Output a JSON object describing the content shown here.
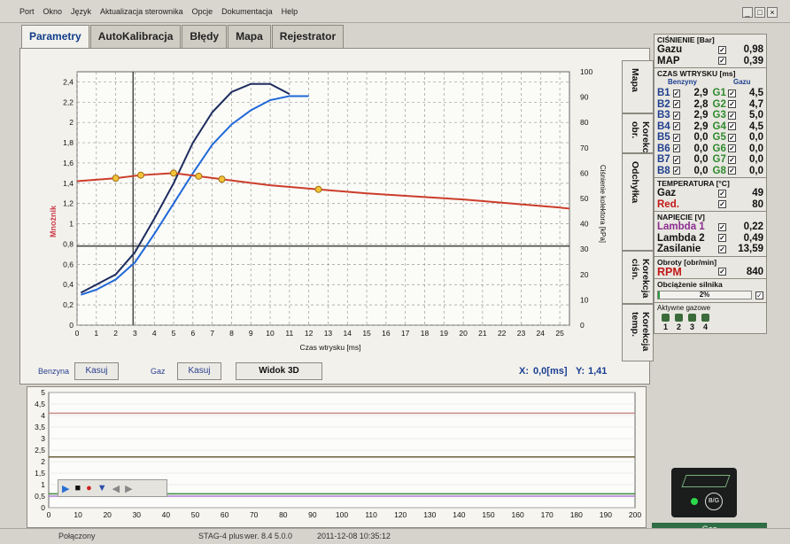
{
  "menu": [
    "Port",
    "Okno",
    "Język",
    "Aktualizacja sterownika",
    "Opcje",
    "Dokumentacja",
    "Help"
  ],
  "tabs": [
    "Parametry",
    "AutoKalibracja",
    "Błędy",
    "Mapa",
    "Rejestrator"
  ],
  "active_tab": "Parametry",
  "side_tabs": [
    "Mapa",
    "Korekcja obr.",
    "Odchyłka",
    "Korekcja ciśn.",
    "Korekcja temp."
  ],
  "map_chart": {
    "ylabel_left": "Mnożnik",
    "ylabel_right": "Ciśnienie kolektora [kPa]",
    "xlabel": "Czas wtrysku [ms]",
    "x_ticks": [
      "0",
      "1",
      "2",
      "3",
      "4",
      "5",
      "6",
      "7",
      "8",
      "9",
      "10",
      "11",
      "12",
      "13",
      "14",
      "15",
      "16",
      "17",
      "18",
      "19",
      "20",
      "21",
      "22",
      "23",
      "24",
      "25"
    ],
    "y_left_ticks": [
      "0",
      "0,2",
      "0,4",
      "0,6",
      "0,8",
      "1",
      "1,2",
      "1,4",
      "1,6",
      "1,8",
      "2",
      "2,2",
      "2,4"
    ],
    "y_right_ticks": [
      "0",
      "10",
      "20",
      "30",
      "40",
      "50",
      "60",
      "70",
      "80",
      "90",
      "100"
    ]
  },
  "chart_data": [
    {
      "type": "scatter",
      "title": "",
      "xlabel": "Czas wtrysku [ms]",
      "ylabel": "Mnożnik",
      "ylabel_right": "Ciśnienie kolektora [kPa]",
      "xlim": [
        0,
        25.5
      ],
      "ylim": [
        0,
        2.5
      ],
      "ylim_right": [
        0,
        100
      ],
      "grid": true,
      "series": [
        {
          "name": "Benzyna",
          "color": "#1d2c5e",
          "curve": [
            [
              0.2,
              0.32
            ],
            [
              1,
              0.4
            ],
            [
              2,
              0.5
            ],
            [
              3,
              0.72
            ],
            [
              4,
              1.05
            ],
            [
              5,
              1.4
            ],
            [
              6,
              1.8
            ],
            [
              7,
              2.1
            ],
            [
              8,
              2.3
            ],
            [
              9,
              2.38
            ],
            [
              10,
              2.38
            ],
            [
              11,
              2.28
            ]
          ]
        },
        {
          "name": "Gaz",
          "color": "#1f68d8",
          "curve": [
            [
              0.2,
              0.3
            ],
            [
              1,
              0.35
            ],
            [
              2,
              0.45
            ],
            [
              3,
              0.62
            ],
            [
              4,
              0.9
            ],
            [
              5,
              1.2
            ],
            [
              6,
              1.5
            ],
            [
              7,
              1.78
            ],
            [
              8,
              1.98
            ],
            [
              9,
              2.12
            ],
            [
              10,
              2.22
            ],
            [
              11,
              2.26
            ],
            [
              12,
              2.26
            ]
          ]
        },
        {
          "name": "",
          "color": "#cc3d2a",
          "curve": [
            [
              0,
              1.42
            ],
            [
              2,
              1.45
            ],
            [
              3.3,
              1.48
            ],
            [
              5,
              1.5
            ],
            [
              7.5,
              1.44
            ],
            [
              10,
              1.38
            ],
            [
              12.5,
              1.34
            ],
            [
              15,
              1.3
            ],
            [
              20,
              1.24
            ],
            [
              25,
              1.16
            ],
            [
              25.5,
              1.15
            ]
          ],
          "markers": [
            [
              2,
              1.45
            ],
            [
              3.3,
              1.48
            ],
            [
              5,
              1.5
            ],
            [
              6.3,
              1.47
            ],
            [
              7.5,
              1.44
            ],
            [
              12.5,
              1.34
            ]
          ]
        }
      ],
      "cursor_x": 2.9,
      "horizontal_line_y": 0.78
    },
    {
      "type": "line",
      "title": "",
      "x_ticks": [
        "0",
        "10",
        "20",
        "30",
        "40",
        "50",
        "60",
        "70",
        "80",
        "90",
        "100",
        "110",
        "120",
        "130",
        "140",
        "150",
        "160",
        "170",
        "180",
        "190",
        "200"
      ],
      "y_ticks": [
        "0",
        "0,5",
        "1",
        "1,5",
        "2",
        "2,5",
        "3",
        "3,5",
        "4",
        "4,5",
        "5"
      ],
      "xlim": [
        0,
        200
      ],
      "ylim": [
        0,
        5
      ],
      "series": [
        {
          "name": "",
          "color": "#c98b8b",
          "level": 4.1
        },
        {
          "name": "",
          "color": "#6b5f3a",
          "level": 2.2
        },
        {
          "name": "",
          "color": "#3a8a3a",
          "level": 0.6
        },
        {
          "name": "",
          "color": "#b07bd6",
          "level": 0.5
        }
      ]
    }
  ],
  "controls": {
    "benzyna_label": "Benzyna",
    "kasuj1": "Kasuj",
    "gaz_label": "Gaz",
    "kasuj2": "Kasuj",
    "widok3d": "Widok 3D",
    "x_label": "X:",
    "x_value": "0,0[ms]",
    "y_label": "Y:",
    "y_value": "1,41"
  },
  "right_panel": {
    "pressure_title": "CIŚNIENIE [Bar]",
    "pressure": [
      {
        "label": "Gazu",
        "value": "0,98"
      },
      {
        "label": "MAP",
        "value": "0,39"
      }
    ],
    "injection_title": "CZAS WTRYSKU [ms]",
    "benzyny_label": "Benzyny",
    "gazu_label": "Gazu",
    "injectors": [
      {
        "b": "B1",
        "bv": "2,9",
        "g": "G1",
        "gv": "4,5"
      },
      {
        "b": "B2",
        "bv": "2,8",
        "g": "G2",
        "gv": "4,7"
      },
      {
        "b": "B3",
        "bv": "2,9",
        "g": "G3",
        "gv": "5,0"
      },
      {
        "b": "B4",
        "bv": "2,9",
        "g": "G4",
        "gv": "4,5"
      },
      {
        "b": "B5",
        "bv": "0,0",
        "g": "G5",
        "gv": "0,0"
      },
      {
        "b": "B6",
        "bv": "0,0",
        "g": "G6",
        "gv": "0,0"
      },
      {
        "b": "B7",
        "bv": "0,0",
        "g": "G7",
        "gv": "0,0"
      },
      {
        "b": "B8",
        "bv": "0,0",
        "g": "G8",
        "gv": "0,0"
      }
    ],
    "temp_title": "TEMPERATURA [°C]",
    "temps": [
      {
        "label": "Gaz",
        "value": "49"
      },
      {
        "label": "Red.",
        "value": "80"
      }
    ],
    "voltage_title": "NAPIĘCIE [V]",
    "voltages": [
      {
        "label": "Lambda 1",
        "value": "0,22"
      },
      {
        "label": "Lambda 2",
        "value": "0,49"
      },
      {
        "label": "Zasilanie",
        "value": "13,59"
      }
    ],
    "rpm_title": "Obroty [obr/min]",
    "rpm_label": "RPM",
    "rpm_value": "840",
    "load_title": "Obciążenie silnika",
    "load_value": "2%",
    "load_fraction": 0.02,
    "active_title": "Aktywne gazowe",
    "active_nums": [
      "1",
      "2",
      "3",
      "4"
    ]
  },
  "lcd": {
    "label": "B/G"
  },
  "gaz_status": "Gaz",
  "status": {
    "conn": "Połączony",
    "device": "STAG-4 plus",
    "version": "wer. 8.4  5.0.0",
    "datetime": "2011-12-08 10:35:12"
  },
  "colors": {
    "benzyna": "#1d2c5e",
    "gaz": "#1f68d8",
    "curve": "#cc3d2a",
    "accent": "#1a3e92"
  }
}
